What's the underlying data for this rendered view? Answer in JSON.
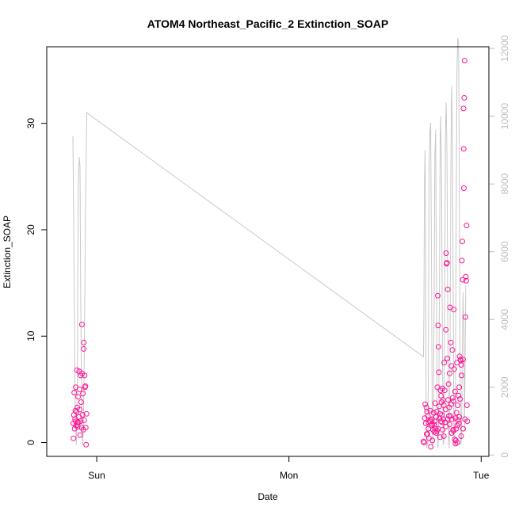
{
  "chart_data": {
    "type": "scatter",
    "title": "ATOM4 Northeast_Pacific_2 Extinction_SOAP",
    "xlabel": "Date",
    "ylabel": "Extinction_SOAP",
    "xlim_days": [
      -0.26,
      2.04
    ],
    "x_ticks": [
      {
        "label": "Sun",
        "value": 0
      },
      {
        "label": "Mon",
        "value": 1
      },
      {
        "label": "Tue",
        "value": 2
      }
    ],
    "ylim": [
      -1.3,
      37.2
    ],
    "y_ticks": [
      0,
      10,
      20,
      30
    ],
    "y2lim": [
      -40,
      12050
    ],
    "y2_ticks": [
      0,
      2000,
      4000,
      6000,
      8000,
      10000,
      12000
    ],
    "grid": false,
    "colors": {
      "points": "#ff1493",
      "line": "#c8c8c8",
      "right_axis": "#bebebe",
      "axes": "#000000"
    },
    "series": [
      {
        "marker": "circle-open",
        "axis": "left",
        "points": [
          [
            -0.122,
            1.8
          ],
          [
            -0.121,
            0.4
          ],
          [
            -0.119,
            2.6
          ],
          [
            -0.117,
            4.7
          ],
          [
            -0.115,
            1.3
          ],
          [
            -0.113,
            2.2
          ],
          [
            -0.111,
            3.0
          ],
          [
            -0.109,
            5.2
          ],
          [
            -0.107,
            1.6
          ],
          [
            -0.105,
            2.9
          ],
          [
            -0.103,
            6.8
          ],
          [
            -0.101,
            3.3
          ],
          [
            -0.099,
            1.5
          ],
          [
            -0.097,
            4.3
          ],
          [
            -0.095,
            1.9
          ],
          [
            -0.093,
            2.4
          ],
          [
            -0.091,
            6.7
          ],
          [
            -0.089,
            5.0
          ],
          [
            -0.087,
            0.7
          ],
          [
            -0.085,
            2.0
          ],
          [
            -0.083,
            6.3
          ],
          [
            -0.081,
            3.8
          ],
          [
            -0.079,
            1.4
          ],
          [
            -0.077,
            11.1
          ],
          [
            -0.076,
            6.5
          ],
          [
            -0.074,
            2.6
          ],
          [
            -0.072,
            4.6
          ],
          [
            -0.07,
            1.2
          ],
          [
            -0.068,
            8.8
          ],
          [
            -0.067,
            9.4
          ],
          [
            -0.065,
            2.1
          ],
          [
            -0.063,
            6.3
          ],
          [
            -0.061,
            5.2
          ],
          [
            -0.059,
            5.3
          ],
          [
            -0.057,
            1.4
          ],
          [
            -0.055,
            -0.2
          ],
          [
            -0.053,
            2.7
          ],
          [
            -0.11,
            2.0
          ],
          [
            -0.1,
            1.9
          ],
          [
            -0.088,
            3.1
          ],
          [
            1.7,
            0.1
          ],
          [
            1.703,
            0.0
          ],
          [
            1.706,
            2.3
          ],
          [
            1.709,
            3.6
          ],
          [
            1.712,
            1.8
          ],
          [
            1.715,
            3.3
          ],
          [
            1.718,
            2.9
          ],
          [
            1.72,
            0.8
          ],
          [
            1.723,
            2.5
          ],
          [
            1.726,
            1.3
          ],
          [
            1.729,
            0.4
          ],
          [
            1.732,
            2.0
          ],
          [
            1.735,
            3.0
          ],
          [
            1.738,
            -0.4
          ],
          [
            1.741,
            1.6
          ],
          [
            1.744,
            2.2
          ],
          [
            1.746,
            0.2
          ],
          [
            1.749,
            1.2
          ],
          [
            1.752,
            2.8
          ],
          [
            1.755,
            1.7
          ],
          [
            1.758,
            2.0
          ],
          [
            1.76,
            3.7
          ],
          [
            1.763,
            1.3
          ],
          [
            1.766,
            2.4
          ],
          [
            1.768,
            2.9
          ],
          [
            1.77,
            1.1
          ],
          [
            1.772,
            5.2
          ],
          [
            1.774,
            13.8
          ],
          [
            1.776,
            11.0
          ],
          [
            1.778,
            9.0
          ],
          [
            1.78,
            6.6
          ],
          [
            1.782,
            3.4
          ],
          [
            1.784,
            2.3
          ],
          [
            1.786,
            0.5
          ],
          [
            1.788,
            4.9
          ],
          [
            1.79,
            2.0
          ],
          [
            1.792,
            4.4
          ],
          [
            1.794,
            3.8
          ],
          [
            1.796,
            2.6
          ],
          [
            1.798,
            5.1
          ],
          [
            1.8,
            1.2
          ],
          [
            1.802,
            4.0
          ],
          [
            1.804,
            2.2
          ],
          [
            1.806,
            3.5
          ],
          [
            1.808,
            7.5
          ],
          [
            1.81,
            4.9
          ],
          [
            1.812,
            1.9
          ],
          [
            1.814,
            3.1
          ],
          [
            1.816,
            10.6
          ],
          [
            1.818,
            17.8
          ],
          [
            1.82,
            16.8
          ],
          [
            1.822,
            16.9
          ],
          [
            1.824,
            7.9
          ],
          [
            1.826,
            14.4
          ],
          [
            1.828,
            4.0
          ],
          [
            1.83,
            5.5
          ],
          [
            1.832,
            2.5
          ],
          [
            1.834,
            3.3
          ],
          [
            1.836,
            6.5
          ],
          [
            1.838,
            12.7
          ],
          [
            1.84,
            2.5
          ],
          [
            1.842,
            9.4
          ],
          [
            1.844,
            3.6
          ],
          [
            1.846,
            7.2
          ],
          [
            1.848,
            2.2
          ],
          [
            1.85,
            8.7
          ],
          [
            1.852,
            4.2
          ],
          [
            1.854,
            1.2
          ],
          [
            1.856,
            3.9
          ],
          [
            1.858,
            12.5
          ],
          [
            1.86,
            6.9
          ],
          [
            1.862,
            0.3
          ],
          [
            1.864,
            4.8
          ],
          [
            1.866,
            2.3
          ],
          [
            1.868,
            0.2
          ],
          [
            1.87,
            1.3
          ],
          [
            1.872,
            2.8
          ],
          [
            1.874,
            7.5
          ],
          [
            1.876,
            0.0
          ],
          [
            1.878,
            3.5
          ],
          [
            1.88,
            2.1
          ],
          [
            1.882,
            4.4
          ],
          [
            1.884,
            1.8
          ],
          [
            1.886,
            5.2
          ],
          [
            1.888,
            8.1
          ],
          [
            1.89,
            4.1
          ],
          [
            1.892,
            7.8
          ],
          [
            1.894,
            7.7
          ],
          [
            1.896,
            7.3
          ],
          [
            1.898,
            6.3
          ],
          [
            1.9,
            17.1
          ],
          [
            1.902,
            18.9
          ],
          [
            1.904,
            15.3
          ],
          [
            1.906,
            7.8
          ],
          [
            1.908,
            31.4
          ],
          [
            1.909,
            27.6
          ],
          [
            1.91,
            23.9
          ],
          [
            1.912,
            32.4
          ],
          [
            1.914,
            35.9
          ],
          [
            1.916,
            2.2
          ],
          [
            1.918,
            11.8
          ],
          [
            1.92,
            15.6
          ],
          [
            1.922,
            15.2
          ],
          [
            1.924,
            20.4
          ],
          [
            1.926,
            3.5
          ],
          [
            1.928,
            2.0
          ],
          [
            1.906,
            1.3
          ],
          [
            1.896,
            0.6
          ],
          [
            1.886,
            2.4
          ],
          [
            1.876,
            1.6
          ],
          [
            1.866,
            -0.1
          ],
          [
            1.856,
            1.1
          ],
          [
            1.846,
            0.9
          ],
          [
            1.836,
            1.7
          ],
          [
            1.826,
            2.2
          ],
          [
            1.816,
            1.5
          ],
          [
            1.806,
            0.6
          ],
          [
            1.796,
            1.9
          ],
          [
            1.786,
            2.7
          ],
          [
            1.776,
            1.3
          ],
          [
            1.766,
            0.9
          ],
          [
            1.756,
            1.0
          ],
          [
            1.746,
            1.7
          ],
          [
            1.736,
            2.1
          ],
          [
            1.726,
            1.9
          ],
          [
            1.716,
            0.8
          ]
        ]
      },
      {
        "marker": "line",
        "axis": "right",
        "points": [
          [
            -0.124,
            9400
          ],
          [
            -0.117,
            5000
          ],
          [
            -0.112,
            1200
          ],
          [
            -0.106,
            300
          ],
          [
            -0.101,
            2200
          ],
          [
            -0.096,
            8000
          ],
          [
            -0.091,
            8800
          ],
          [
            -0.087,
            8500
          ],
          [
            -0.083,
            4500
          ],
          [
            -0.078,
            1000
          ],
          [
            -0.073,
            300
          ],
          [
            -0.069,
            800
          ],
          [
            -0.064,
            3400
          ],
          [
            -0.058,
            7400
          ],
          [
            -0.052,
            10100
          ],
          [
            1.7,
            2900
          ],
          [
            1.702,
            4200
          ],
          [
            1.705,
            8000
          ],
          [
            1.708,
            9000
          ],
          [
            1.711,
            6500
          ],
          [
            1.714,
            900
          ],
          [
            1.717,
            200
          ],
          [
            1.72,
            400
          ],
          [
            1.723,
            300
          ],
          [
            1.726,
            3500
          ],
          [
            1.729,
            8500
          ],
          [
            1.733,
            9500
          ],
          [
            1.737,
            9800
          ],
          [
            1.741,
            6000
          ],
          [
            1.745,
            1500
          ],
          [
            1.748,
            200
          ],
          [
            1.751,
            900
          ],
          [
            1.755,
            4500
          ],
          [
            1.759,
            8800
          ],
          [
            1.763,
            9600
          ],
          [
            1.767,
            5400
          ],
          [
            1.771,
            1000
          ],
          [
            1.775,
            200
          ],
          [
            1.779,
            1100
          ],
          [
            1.783,
            5000
          ],
          [
            1.787,
            9300
          ],
          [
            1.79,
            10000
          ],
          [
            1.794,
            8200
          ],
          [
            1.798,
            3400
          ],
          [
            1.802,
            300
          ],
          [
            1.806,
            400
          ],
          [
            1.81,
            4100
          ],
          [
            1.814,
            9500
          ],
          [
            1.818,
            10400
          ],
          [
            1.822,
            8900
          ],
          [
            1.826,
            4200
          ],
          [
            1.83,
            500
          ],
          [
            1.834,
            200
          ],
          [
            1.838,
            3000
          ],
          [
            1.842,
            8200
          ],
          [
            1.846,
            10900
          ],
          [
            1.85,
            9800
          ],
          [
            1.854,
            5200
          ],
          [
            1.858,
            700
          ],
          [
            1.862,
            300
          ],
          [
            1.866,
            2000
          ],
          [
            1.87,
            7000
          ],
          [
            1.874,
            11300
          ],
          [
            1.878,
            12300
          ],
          [
            1.882,
            12200
          ],
          [
            1.886,
            9000
          ],
          [
            1.89,
            3000
          ],
          [
            1.894,
            300
          ],
          [
            1.898,
            500
          ],
          [
            1.902,
            3200
          ],
          [
            1.906,
            4800
          ],
          [
            1.91,
            3400
          ],
          [
            1.913,
            700
          ],
          [
            1.917,
            3500
          ],
          [
            1.92,
            5000
          ]
        ]
      }
    ]
  }
}
